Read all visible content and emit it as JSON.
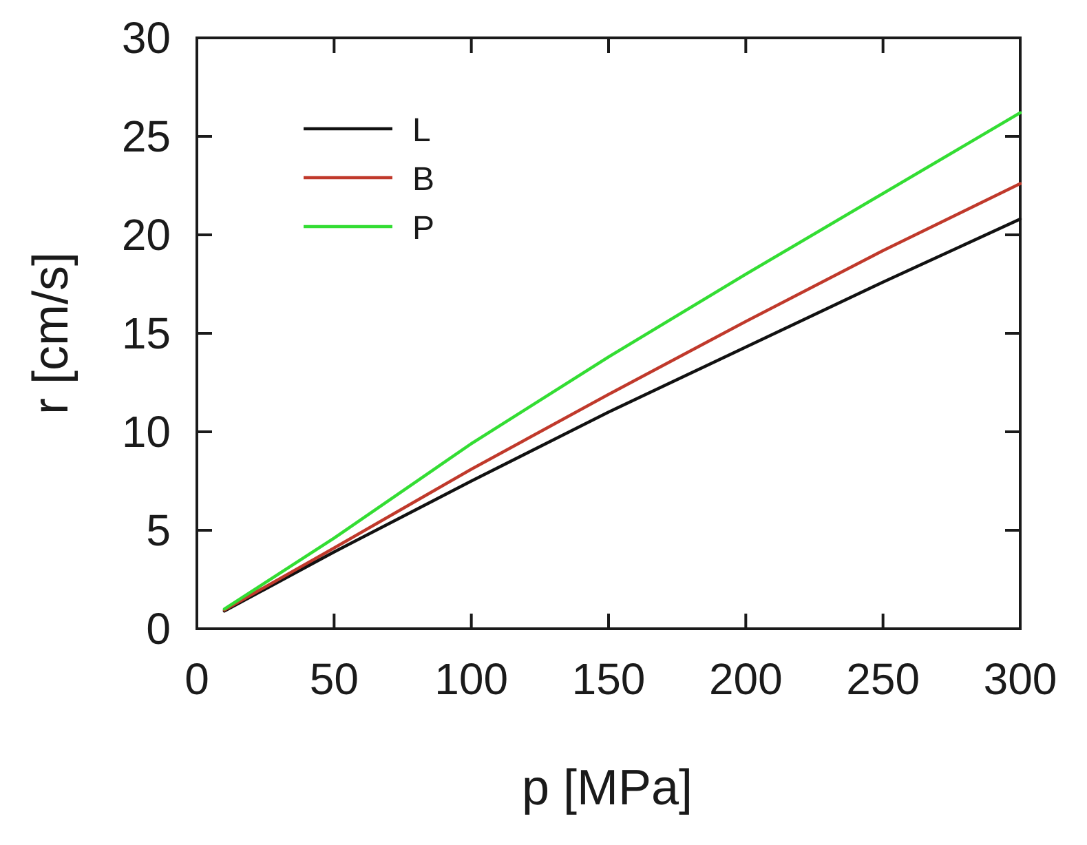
{
  "chart_data": {
    "type": "line",
    "xlabel": "p [MPa]",
    "ylabel": "r [cm/s]",
    "xlim": [
      0,
      300
    ],
    "ylim": [
      0,
      30
    ],
    "x_ticks": [
      "0",
      "50",
      "100",
      "150",
      "200",
      "250",
      "300"
    ],
    "y_ticks": [
      "0",
      "5",
      "10",
      "15",
      "20",
      "25",
      "30"
    ],
    "grid": false,
    "legend_position": "top-left",
    "series": [
      {
        "name": "L",
        "color": "#111111",
        "x": [
          10,
          50,
          100,
          150,
          200,
          250,
          300
        ],
        "y": [
          0.9,
          3.9,
          7.5,
          11.0,
          14.3,
          17.6,
          20.8
        ]
      },
      {
        "name": "B",
        "color": "#c0392b",
        "x": [
          10,
          50,
          100,
          150,
          200,
          250,
          300
        ],
        "y": [
          0.95,
          4.1,
          8.1,
          11.9,
          15.6,
          19.2,
          22.6
        ]
      },
      {
        "name": "P",
        "color": "#33dd33",
        "x": [
          10,
          50,
          100,
          150,
          200,
          250,
          300
        ],
        "y": [
          1.0,
          4.6,
          9.4,
          13.8,
          18.0,
          22.1,
          26.2
        ]
      }
    ]
  }
}
